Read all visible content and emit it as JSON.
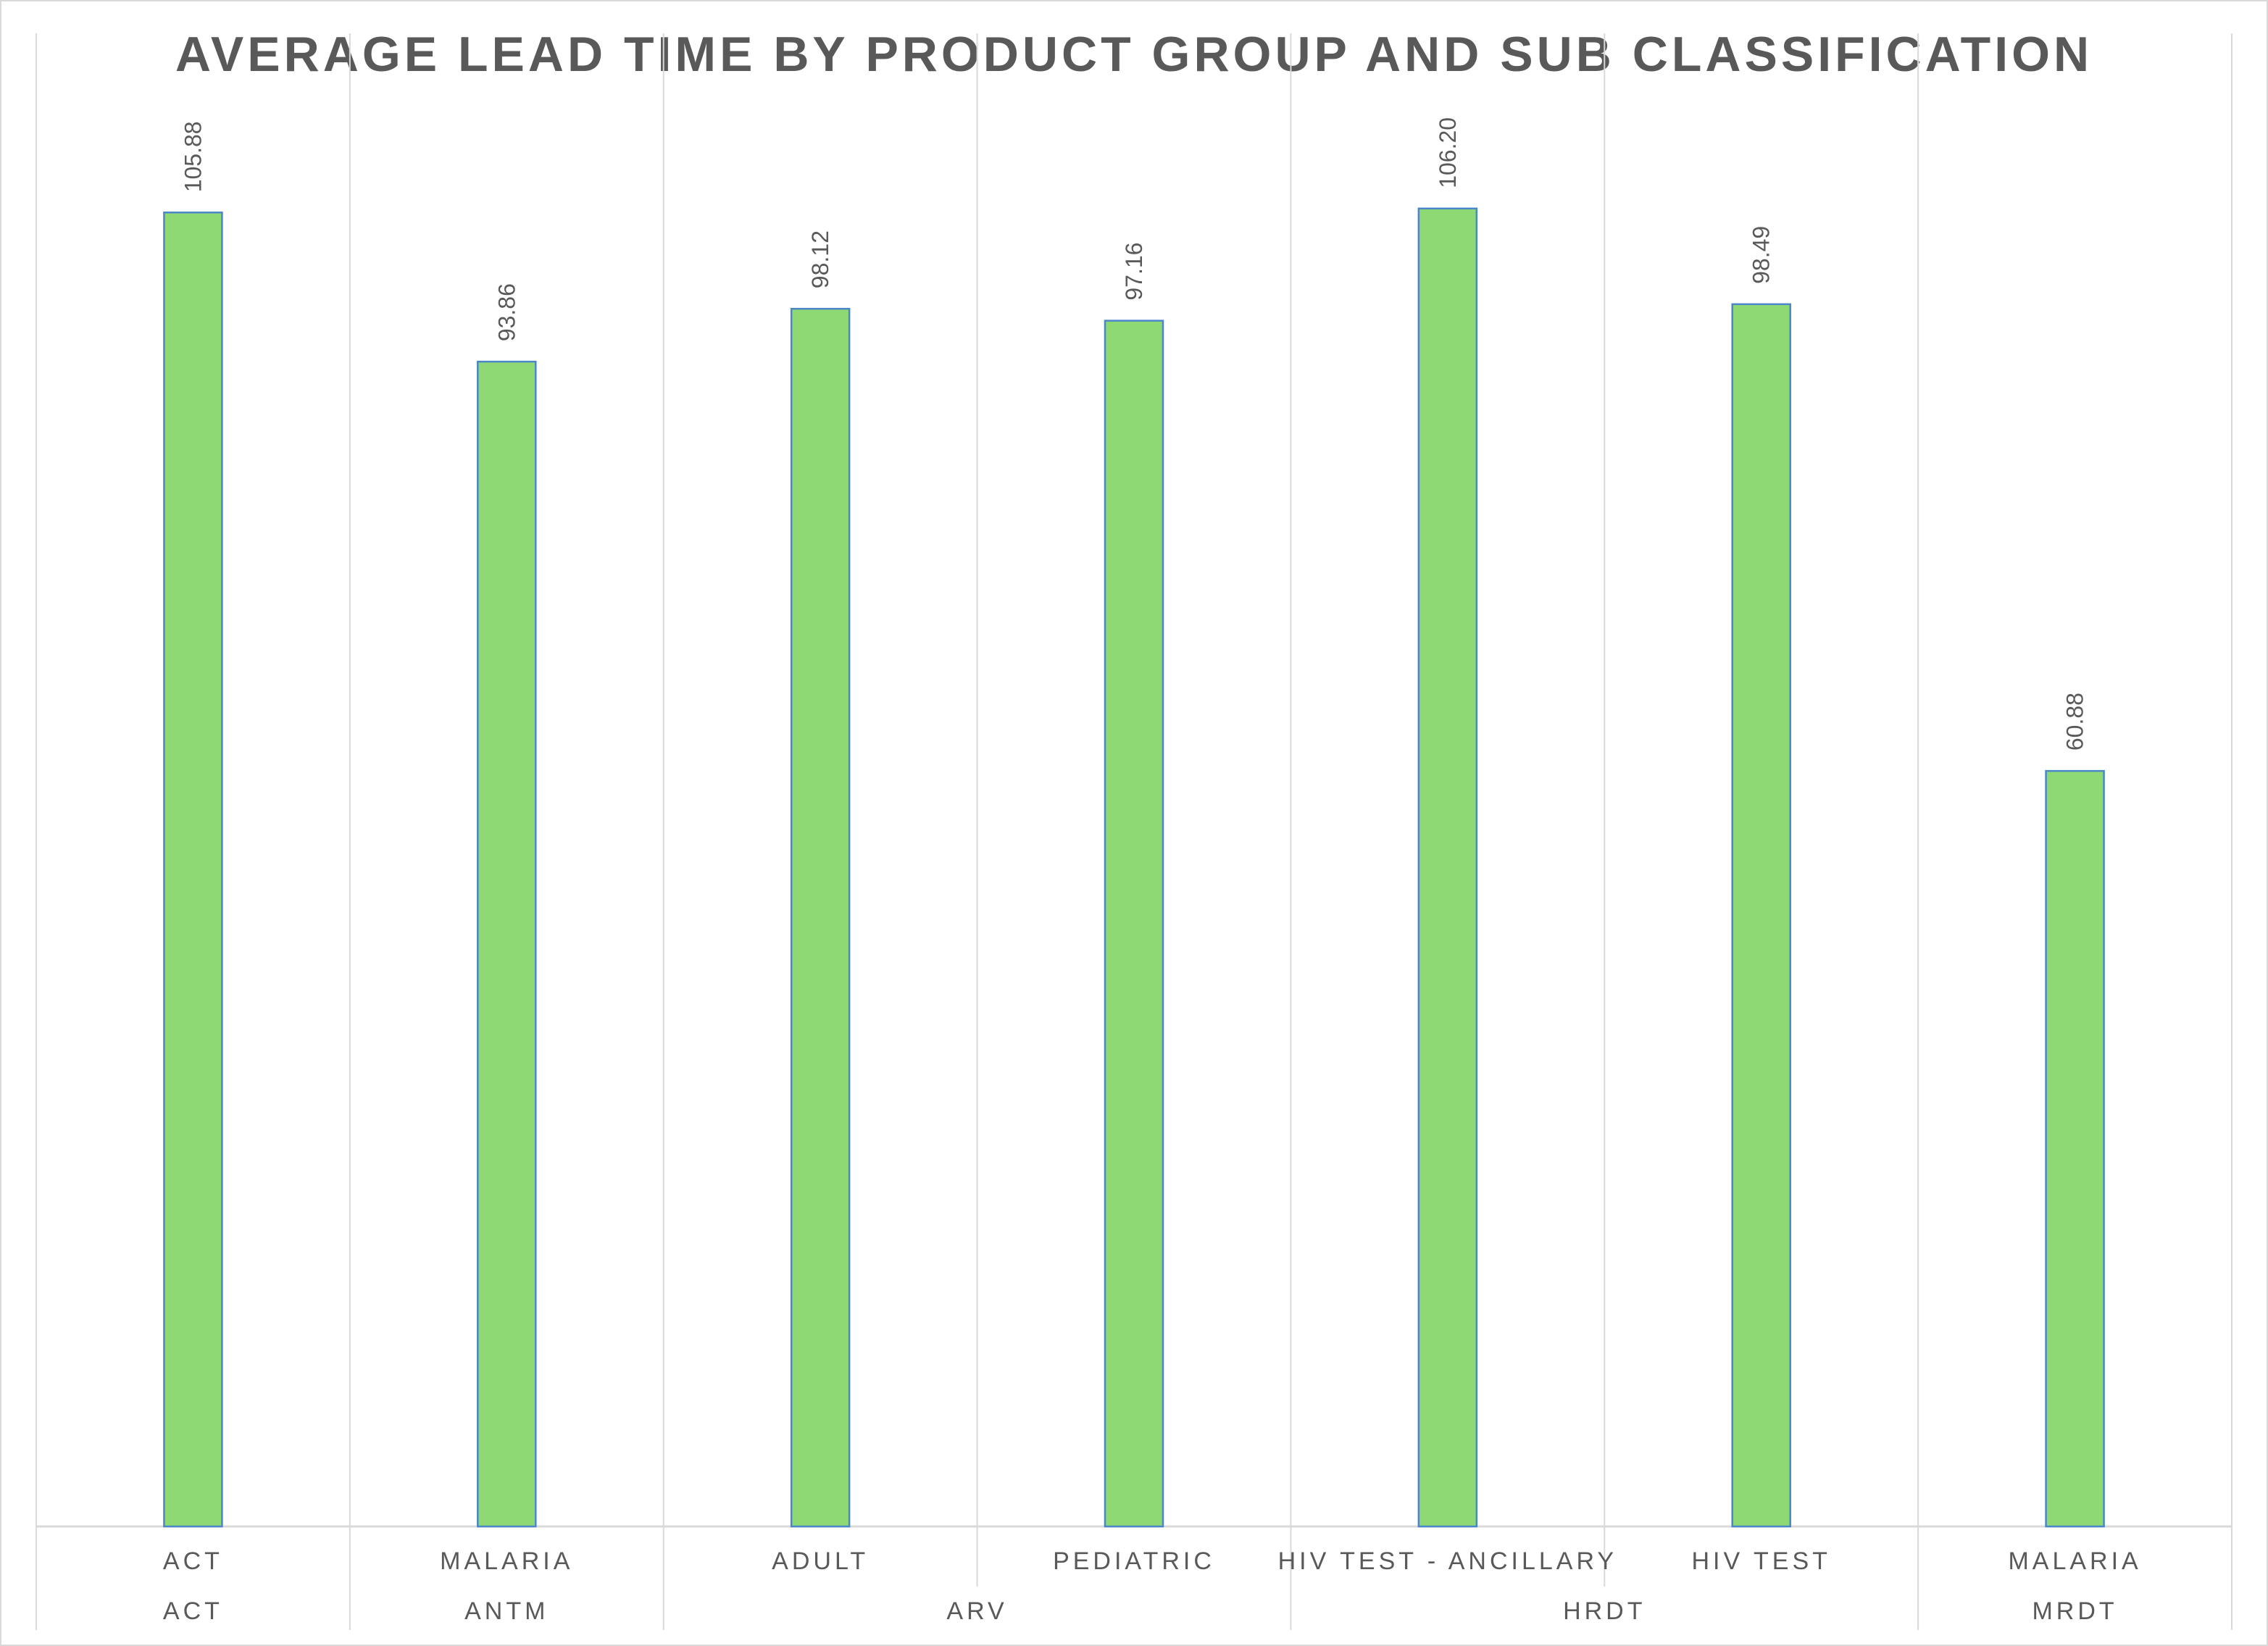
{
  "chart_data": {
    "type": "bar",
    "title": "AVERAGE LEAD TIME BY PRODUCT GROUP AND SUB CLASSIFICATION",
    "xlabel": "",
    "ylabel": "",
    "ylim": [
      0,
      120
    ],
    "grid": false,
    "legend": "none",
    "bar_color": "#8ED973",
    "bar_border_color": "#4A86C8",
    "groups": [
      {
        "label": "ACT",
        "span": 1
      },
      {
        "label": "ANTM",
        "span": 1
      },
      {
        "label": "ARV",
        "span": 2
      },
      {
        "label": "HRDT",
        "span": 2
      },
      {
        "label": "MRDT",
        "span": 1
      }
    ],
    "categories": [
      "ACT",
      "MALARIA",
      "ADULT",
      "PEDIATRIC",
      "HIV TEST - ANCILLARY",
      "HIV TEST",
      "MALARIA"
    ],
    "values": [
      105.88,
      93.86,
      98.12,
      97.16,
      106.2,
      98.49,
      60.88
    ],
    "value_labels": [
      "105.88",
      "93.86",
      "98.12",
      "97.16",
      "106.20",
      "98.49",
      "60.88"
    ]
  }
}
